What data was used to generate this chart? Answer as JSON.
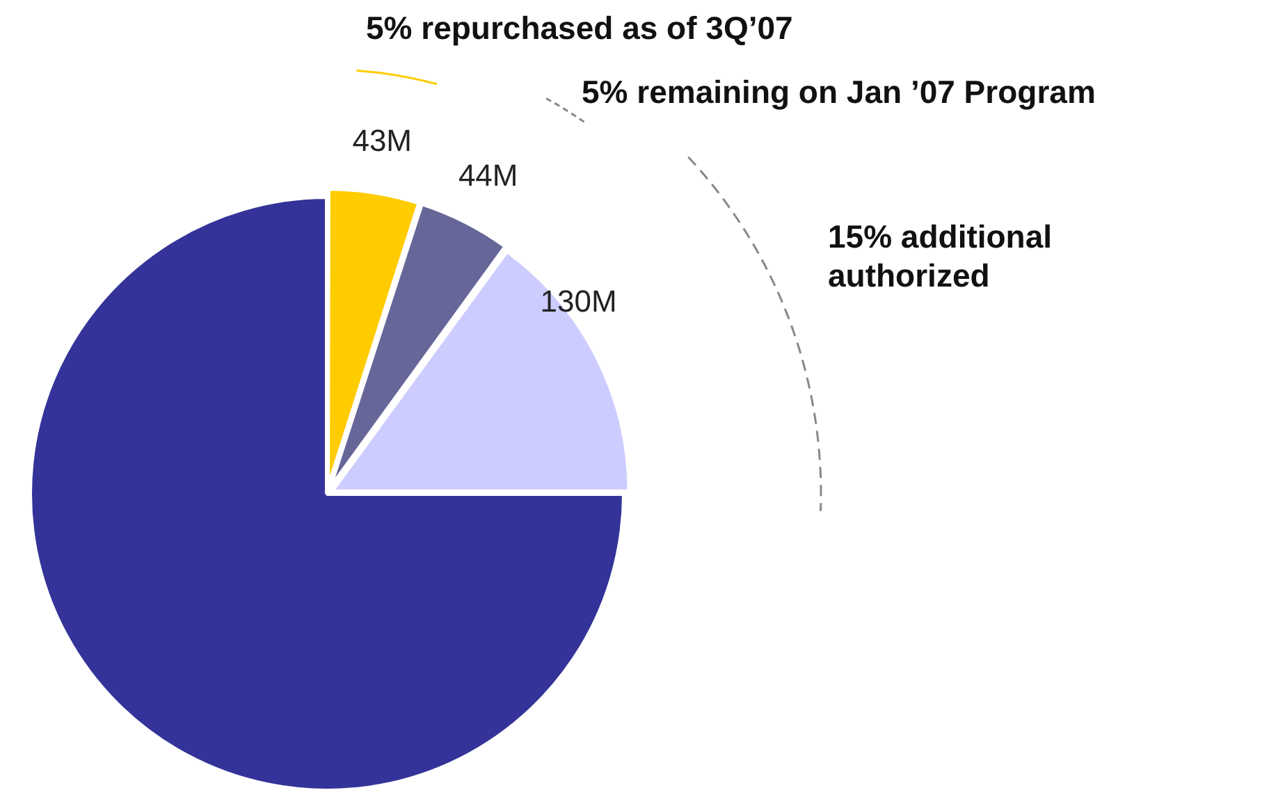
{
  "chart_data": {
    "type": "pie",
    "categories": [
      null,
      null,
      null,
      null
    ],
    "values": [
      43,
      44,
      130,
      651
    ],
    "value_labels": [
      "43M",
      "44M",
      "130M",
      null
    ],
    "colors": [
      "#ffcc00",
      "#666699",
      "#ccccff",
      "#333399"
    ],
    "annotations": [
      "5% repurchased as of 3Q’07",
      "5% remaining on Jan ’07 Program",
      "15% additional authorized"
    ],
    "legend": false
  }
}
